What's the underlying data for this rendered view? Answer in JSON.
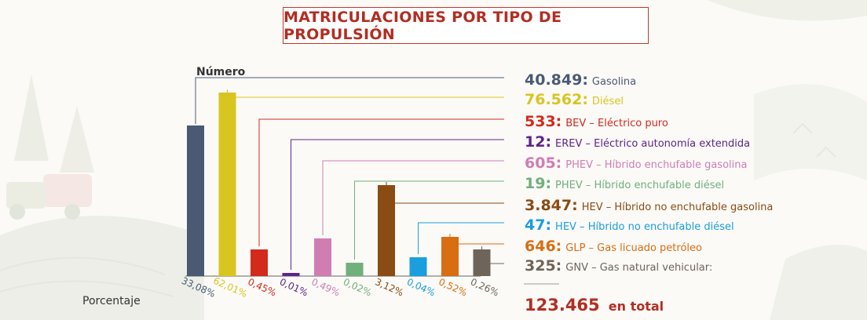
{
  "title": "MATRICULACIONES POR TIPO DE PROPULSIÓN",
  "colors": {
    "title": "#b32d22",
    "axis": "#555555",
    "total": "#b32d22"
  },
  "chart_data": {
    "type": "bar",
    "ylabel": "Número",
    "xlabel": "Porcentaje",
    "categories": [
      "Gasolina",
      "Diésel",
      "BEV",
      "EREV",
      "PHEV gasolina",
      "PHEV diésel",
      "HEV gasolina",
      "HEV diésel",
      "GLP",
      "GNV"
    ],
    "values": [
      40849,
      76562,
      533,
      12,
      605,
      19,
      3847,
      47,
      646,
      325
    ],
    "percentages": [
      "33,08%",
      "62,01%",
      "0,45%",
      "0,01%",
      "0,49%",
      "0,02%",
      "3,12%",
      "0,04%",
      "0,52%",
      "0,26%"
    ],
    "colors": [
      "#4a5a73",
      "#d8c520",
      "#d22a1d",
      "#5e2487",
      "#d07db4",
      "#70b07a",
      "#8a4b14",
      "#1a9ede",
      "#d86d12",
      "#6f6459"
    ],
    "legend": [
      {
        "value": "40.849:",
        "label": "Gasolina"
      },
      {
        "value": "76.562:",
        "label": "Diésel"
      },
      {
        "value": "533:",
        "label": "BEV – Eléctrico puro"
      },
      {
        "value": "12:",
        "label": "EREV – Eléctrico autonomía extendida"
      },
      {
        "value": "605:",
        "label": "PHEV – Híbrido enchufable gasolina"
      },
      {
        "value": "19:",
        "label": "PHEV – Híbrido enchufable diésel"
      },
      {
        "value": "3.847:",
        "label": "HEV – Híbrido no enchufable gasolina"
      },
      {
        "value": "47:",
        "label": "HEV – Híbrido no enchufable diésel"
      },
      {
        "value": "646:",
        "label": "GLP – Gas licuado petróleo"
      },
      {
        "value": "325:",
        "label": "GNV – Gas natural vehicular:"
      }
    ],
    "total": {
      "value": "123.465",
      "label": "en total"
    }
  }
}
